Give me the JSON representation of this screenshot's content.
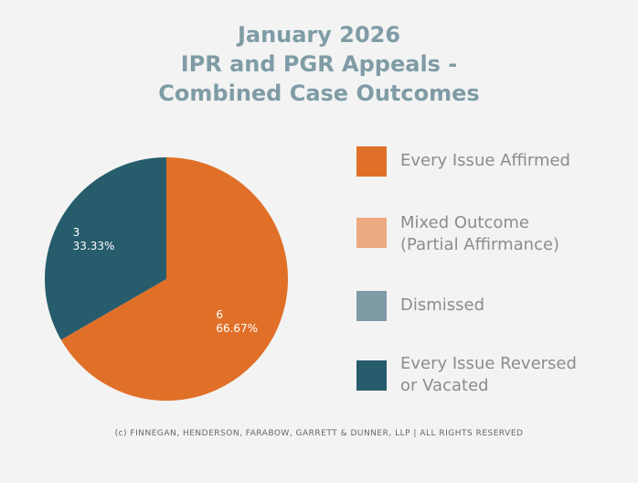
{
  "title": {
    "lines": [
      "January 2026",
      "IPR and PGR Appeals -",
      "Combined Case Outcomes"
    ]
  },
  "colors": {
    "affirmed": "#e07028",
    "mixed": "#eda982",
    "dismissed": "#7f9ca6",
    "reversed": "#265c6c"
  },
  "chart_data": {
    "type": "pie",
    "title": "January 2026 IPR and PGR Appeals - Combined Case Outcomes",
    "categories": [
      "Every Issue Affirmed",
      "Mixed Outcome (Partial Affirmance)",
      "Dismissed",
      "Every Issue Reversed or Vacated"
    ],
    "values": [
      6,
      0,
      0,
      3
    ],
    "percent_labels": [
      "66.67%",
      "",
      "",
      "33.33%"
    ],
    "value_labels": [
      "6",
      "",
      "",
      "3"
    ],
    "legend_placement": "right"
  },
  "legend": [
    {
      "lines": [
        "Every Issue Affirmed"
      ],
      "color": "#e07028"
    },
    {
      "lines": [
        "Mixed Outcome",
        "(Partial Affirmance)"
      ],
      "color": "#eda982"
    },
    {
      "lines": [
        "Dismissed"
      ],
      "color": "#7f9ca6"
    },
    {
      "lines": [
        "Every Issue Reversed",
        "or Vacated"
      ],
      "color": "#265c6c"
    }
  ],
  "footer": "(c) FINNEGAN, HENDERSON, FARABOW, GARRETT & DUNNER, LLP | ALL RIGHTS RESERVED"
}
